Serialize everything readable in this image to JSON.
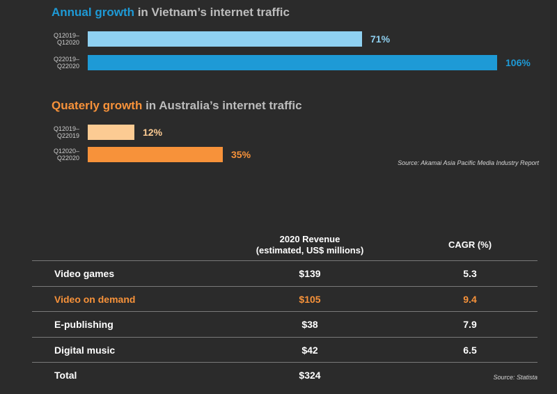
{
  "chart_data": [
    {
      "type": "bar",
      "orientation": "horizontal",
      "title_highlight": "Annual growth",
      "title_rest": " in Vietnam’s internet traffic",
      "categories": [
        "Q12019–\nQ12020",
        "Q22019–\nQ22020"
      ],
      "values": [
        71,
        106
      ],
      "value_labels": [
        "71%",
        "106%"
      ],
      "unit": "%",
      "colors": [
        "#8fd0f0",
        "#1e9ad6"
      ],
      "label_color": "#8fd0f0"
    },
    {
      "type": "bar",
      "orientation": "horizontal",
      "title_highlight": "Quaterly growth",
      "title_rest": " in Australia’s internet traffic",
      "categories": [
        "Q12019–\nQ22019",
        "Q12020–\nQ22020"
      ],
      "values": [
        12,
        35
      ],
      "value_labels": [
        "12%",
        "35%"
      ],
      "unit": "%",
      "colors": [
        "#fccb93",
        "#f7923a"
      ],
      "label_color": "#fccb93",
      "source": "Source: Akamai Asia Pacific Media Industry Report"
    },
    {
      "type": "table",
      "headers": [
        "",
        "2020 Revenue\n(estimated, US$ millions)",
        "CAGR (%)"
      ],
      "rows": [
        {
          "name": "Video games",
          "revenue": "$139",
          "cagr": "5.3",
          "highlight": false
        },
        {
          "name": "Video on demand",
          "revenue": "$105",
          "cagr": "9.4",
          "highlight": true
        },
        {
          "name": "E-publishing",
          "revenue": "$38",
          "cagr": "7.9",
          "highlight": false
        },
        {
          "name": "Digital music",
          "revenue": "$42",
          "cagr": "6.5",
          "highlight": false
        },
        {
          "name": "Total",
          "revenue": "$324",
          "cagr": "",
          "highlight": false
        }
      ],
      "highlight_color": "#f7923a",
      "source": "Source: Statista"
    }
  ]
}
